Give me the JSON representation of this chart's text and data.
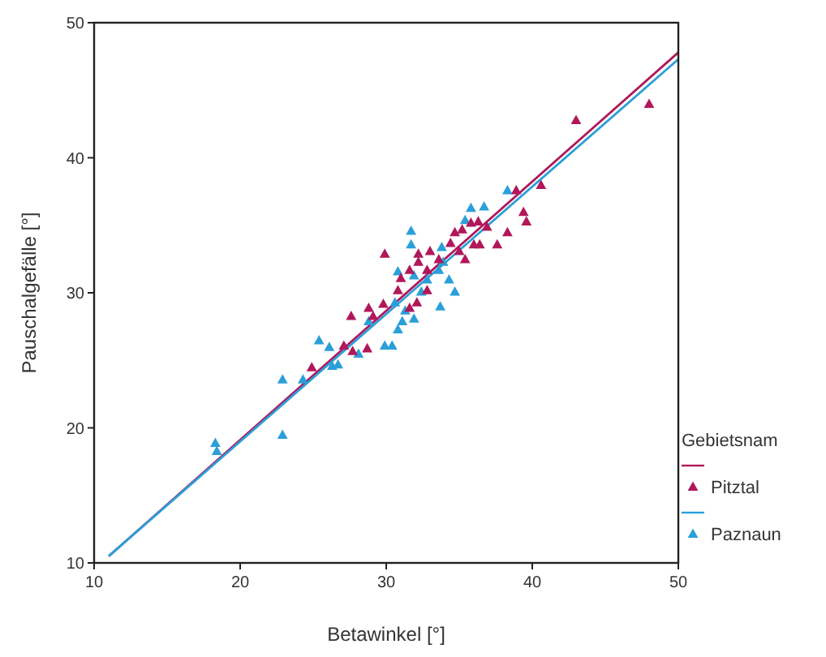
{
  "chart_data": {
    "type": "scatter",
    "xlabel": "Betawinkel [°]",
    "ylabel": "Pauschalgefälle [°]",
    "legend_title": "Gebietsnam",
    "xlim": [
      10,
      50
    ],
    "ylim": [
      10,
      50
    ],
    "xticks": [
      10,
      20,
      30,
      40,
      50
    ],
    "yticks": [
      10,
      20,
      30,
      40,
      50
    ],
    "grid": false,
    "legend": "right",
    "marker": "triangle",
    "series": [
      {
        "name": "Pitztal",
        "color": "#b0185a",
        "x": [
          29.9,
          27.6,
          28.8,
          29.1,
          29.8,
          27.1,
          27.7,
          28.7,
          24.9,
          43.0,
          48.0,
          38.9,
          40.6,
          39.4,
          39.6,
          38.3,
          37.6,
          36.4,
          36.0,
          36.9,
          36.3,
          35.8,
          35.2,
          34.7,
          35.4,
          35.0,
          34.4,
          33.0,
          32.2,
          32.2,
          33.6,
          32.8,
          31.6,
          31.0,
          30.8,
          32.8,
          32.1,
          31.6
        ],
        "values": [
          32.9,
          28.3,
          28.9,
          28.3,
          29.2,
          26.1,
          25.7,
          25.9,
          24.5,
          42.8,
          44.0,
          37.6,
          38.0,
          36.0,
          35.3,
          34.5,
          33.6,
          33.6,
          33.6,
          34.9,
          35.3,
          35.2,
          34.7,
          34.5,
          32.5,
          33.1,
          33.7,
          33.1,
          32.9,
          32.3,
          32.5,
          31.7,
          31.7,
          31.1,
          30.2,
          30.2,
          29.3,
          28.9
        ]
      },
      {
        "name": "Paznaun",
        "color": "#2a9fd8",
        "x": [
          18.3,
          18.4,
          22.9,
          22.9,
          24.3,
          25.4,
          26.1,
          26.3,
          26.7,
          28.1,
          28.8,
          29.9,
          30.4,
          30.8,
          31.1,
          30.6,
          31.7,
          31.7,
          30.8,
          31.9,
          32.4,
          33.7,
          34.7,
          34.3,
          33.8,
          35.4,
          35.8,
          36.7,
          38.3,
          33.6,
          32.8,
          33.9,
          31.9,
          31.3
        ],
        "values": [
          18.9,
          18.3,
          19.5,
          23.6,
          23.6,
          26.5,
          26.0,
          24.6,
          24.7,
          25.5,
          27.9,
          26.1,
          26.1,
          27.3,
          27.9,
          29.3,
          34.6,
          33.6,
          31.6,
          31.3,
          30.1,
          29.0,
          30.1,
          31.0,
          33.4,
          35.4,
          36.3,
          36.4,
          37.6,
          31.7,
          31.0,
          32.3,
          28.1,
          28.7
        ]
      },
      {
        "type": "line",
        "color": "#b0185a",
        "marker": "none",
        "x": [
          11,
          50
        ],
        "values": [
          10.5,
          47.8
        ]
      },
      {
        "type": "line",
        "color": "#2a9fd8",
        "marker": "none",
        "x": [
          11,
          50
        ],
        "values": [
          10.5,
          47.3
        ]
      }
    ]
  }
}
